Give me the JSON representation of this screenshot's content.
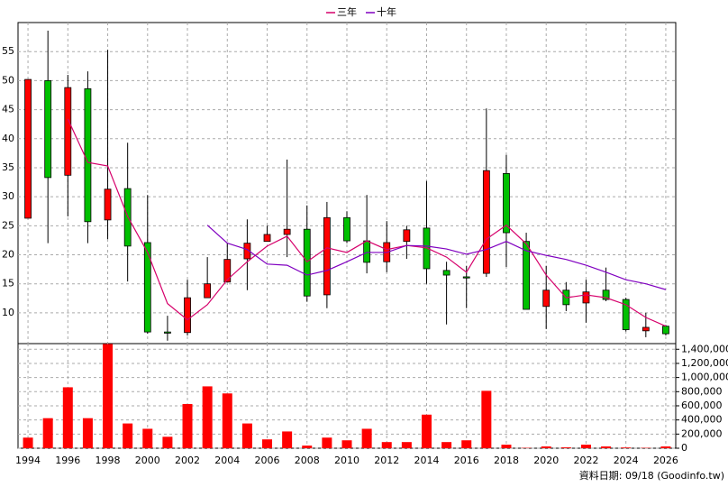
{
  "chart_data": [
    {
      "type": "candlestick",
      "x": [
        1994,
        1995,
        1996,
        1997,
        1998,
        1999,
        2000,
        2001,
        2002,
        2003,
        2004,
        2005,
        2006,
        2007,
        2008,
        2009,
        2010,
        2011,
        2012,
        2013,
        2014,
        2015,
        2016,
        2017,
        2018,
        2019,
        2020,
        2021,
        2022,
        2023,
        2024,
        2025,
        2026
      ],
      "open": [
        26.3,
        50,
        33.7,
        48.6,
        26,
        31.4,
        22.1,
        6.7,
        6.6,
        12.6,
        15.3,
        19.3,
        22.3,
        23.5,
        24.4,
        13.1,
        26.4,
        22.4,
        18.8,
        22.3,
        24.6,
        17.3,
        16.2,
        16.8,
        34,
        22.3,
        11.1,
        13.9,
        11.7,
        13.9,
        12.3,
        6.9,
        7.7
      ],
      "high": [
        50.2,
        58.6,
        51,
        51.6,
        55.3,
        39.3,
        30.3,
        9.5,
        15.7,
        19.6,
        22,
        26.1,
        25,
        36.4,
        28.5,
        29.1,
        27.5,
        30.3,
        25.8,
        25,
        32.7,
        18.8,
        18.1,
        45.2,
        37.2,
        23.8,
        18.1,
        15.3,
        15.7,
        17.8,
        12.6,
        10,
        7.9
      ],
      "low": [
        26.3,
        22,
        26.6,
        22,
        22.7,
        15.4,
        6.4,
        5.2,
        6.1,
        12.6,
        15.3,
        13.9,
        22.3,
        19.6,
        11.9,
        10.8,
        22,
        16.8,
        17,
        19.3,
        15,
        8,
        10.8,
        16.2,
        17.9,
        10.6,
        7.2,
        10.3,
        8.3,
        12,
        6.8,
        5.8,
        6.1
      ],
      "close": [
        50.2,
        33.3,
        48.8,
        25.7,
        31.3,
        21.5,
        6.7,
        6.5,
        12.6,
        15,
        19.2,
        22,
        23.5,
        24.4,
        12.9,
        26.4,
        22.4,
        18.7,
        22.1,
        24.3,
        17.6,
        16.5,
        16,
        34.5,
        23.8,
        10.6,
        13.9,
        11.4,
        13.6,
        12.3,
        7.1,
        7.5,
        6.4
      ],
      "up_color": "#ff0000",
      "down_color": "#00c000",
      "series": [
        {
          "name": "三年",
          "color": "#d6006b",
          "values": [
            null,
            null,
            43.4,
            35.9,
            35.3,
            26.6,
            20.4,
            11.6,
            8.8,
            11.4,
            15.7,
            18.8,
            21.5,
            23.2,
            18.8,
            21.2,
            20.4,
            22.4,
            20.9,
            21.6,
            21.2,
            19.6,
            17,
            22.7,
            25.1,
            21.9,
            16.5,
            12.6,
            13.1,
            12.6,
            11.4,
            9.2,
            7.7
          ]
        },
        {
          "name": "十年",
          "color": "#8000c0",
          "values": [
            null,
            null,
            null,
            null,
            null,
            null,
            null,
            null,
            null,
            25.1,
            22,
            20.9,
            18.4,
            18.2,
            16.5,
            17.3,
            18.8,
            20.4,
            20.4,
            21.6,
            21.5,
            21,
            20.1,
            20.9,
            22.3,
            20.7,
            19.9,
            19.2,
            18.2,
            17,
            15.7,
            15,
            14
          ]
        }
      ],
      "xlim": [
        1993.5,
        2026.5
      ],
      "ylim": [
        4.7,
        60
      ],
      "yticks": [
        10,
        15,
        20,
        25,
        30,
        35,
        40,
        45,
        50,
        55
      ],
      "grid": true
    },
    {
      "type": "bar",
      "x": [
        1994,
        1995,
        1996,
        1997,
        1998,
        1999,
        2000,
        2001,
        2002,
        2003,
        2004,
        2005,
        2006,
        2007,
        2008,
        2009,
        2010,
        2011,
        2012,
        2013,
        2014,
        2015,
        2016,
        2017,
        2018,
        2019,
        2020,
        2021,
        2022,
        2023,
        2024,
        2025,
        2026
      ],
      "values": [
        150000,
        425000,
        862000,
        425000,
        1475000,
        350000,
        275000,
        162000,
        625000,
        875000,
        775000,
        350000,
        125000,
        237000,
        37000,
        150000,
        112000,
        275000,
        87000,
        87000,
        475000,
        87000,
        112000,
        812000,
        50000,
        5000,
        25000,
        12000,
        50000,
        25000,
        10000,
        5000,
        25000
      ],
      "color": "#ff0000",
      "xlim": [
        1993.5,
        2026.5
      ],
      "xticks": [
        1994,
        1996,
        1998,
        2000,
        2002,
        2004,
        2006,
        2008,
        2010,
        2012,
        2014,
        2016,
        2018,
        2020,
        2022,
        2024,
        2026
      ],
      "ylim": [
        0,
        1480000
      ],
      "yticks": [
        0,
        {
          "value": 200000,
          "label": "200,000"
        },
        {
          "value": 400000,
          "label": "400,000"
        },
        {
          "value": 600000,
          "label": "600,000"
        },
        {
          "value": 800000,
          "label": "800,000"
        },
        {
          "value": 1000000,
          "label": "1,000,000"
        },
        {
          "value": 1200000,
          "label": "1,200,000"
        },
        {
          "value": 1400000,
          "label": "1,400,000"
        }
      ],
      "grid": true,
      "source": "資料日期: 09/18 (Goodinfo.tw)"
    }
  ]
}
